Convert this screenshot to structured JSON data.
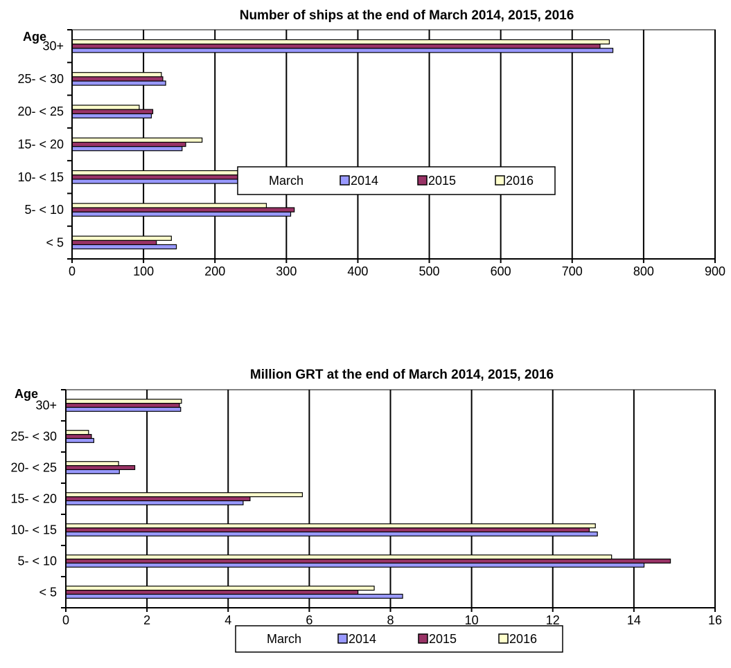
{
  "colors": {
    "series_2014": "#9999ff",
    "series_2015": "#993366",
    "series_2016": "#ffffcc",
    "bar_outline": "#000000",
    "gridline": "#000000",
    "background": "#ffffff"
  },
  "chart_data": [
    {
      "type": "bar",
      "orientation": "horizontal",
      "title": "Number of ships at the end of March 2014, 2015, 2016",
      "ylabel": "Age",
      "xlabel": "",
      "categories": [
        "< 5",
        "5- < 10",
        "10- < 15",
        "15- < 20",
        "20- < 25",
        "25- < 30",
        "30+"
      ],
      "series": [
        {
          "name": "2014",
          "color": "#9999ff",
          "values": [
            146,
            306,
            289,
            154,
            111,
            131,
            757
          ]
        },
        {
          "name": "2015",
          "color": "#993366",
          "values": [
            118,
            311,
            276,
            159,
            113,
            127,
            739
          ]
        },
        {
          "name": "2016",
          "color": "#ffffcc",
          "values": [
            139,
            272,
            282,
            182,
            94,
            125,
            752
          ]
        }
      ],
      "xlim": [
        0,
        900
      ],
      "xticks": [
        0,
        100,
        200,
        300,
        400,
        500,
        600,
        700,
        800,
        900
      ],
      "xtick_labels": [
        "0",
        "100",
        "200",
        "300",
        "400",
        "500",
        "600",
        "700",
        "800",
        "900"
      ],
      "grid": true,
      "legend": {
        "title": "March",
        "labels": [
          "2014",
          "2015",
          "2016"
        ],
        "position": "bottom"
      }
    },
    {
      "type": "bar",
      "orientation": "horizontal",
      "title": "Million GRT at the end of March 2014, 2015, 2016",
      "ylabel": "Age",
      "xlabel": "",
      "categories": [
        "< 5",
        "5- < 10",
        "10- < 15",
        "15- < 20",
        "20- < 25",
        "25- < 30",
        "30+"
      ],
      "series": [
        {
          "name": "2014",
          "color": "#9999ff",
          "values": [
            8.3,
            14.25,
            13.1,
            4.37,
            1.32,
            0.69,
            2.83
          ]
        },
        {
          "name": "2015",
          "color": "#993366",
          "values": [
            7.2,
            14.9,
            12.9,
            4.54,
            1.7,
            0.63,
            2.8
          ]
        },
        {
          "name": "2016",
          "color": "#ffffcc",
          "values": [
            7.6,
            13.45,
            13.05,
            5.83,
            1.3,
            0.56,
            2.85
          ]
        }
      ],
      "xlim": [
        0,
        16
      ],
      "xticks": [
        0,
        2,
        4,
        6,
        8,
        10,
        12,
        14,
        16
      ],
      "xtick_labels": [
        "0",
        "2",
        "4",
        "6",
        "8",
        "10",
        "12",
        "14",
        "16"
      ],
      "grid": true,
      "legend": {
        "title": "March",
        "labels": [
          "2014",
          "2015",
          "2016"
        ],
        "position": "bottom"
      }
    }
  ]
}
